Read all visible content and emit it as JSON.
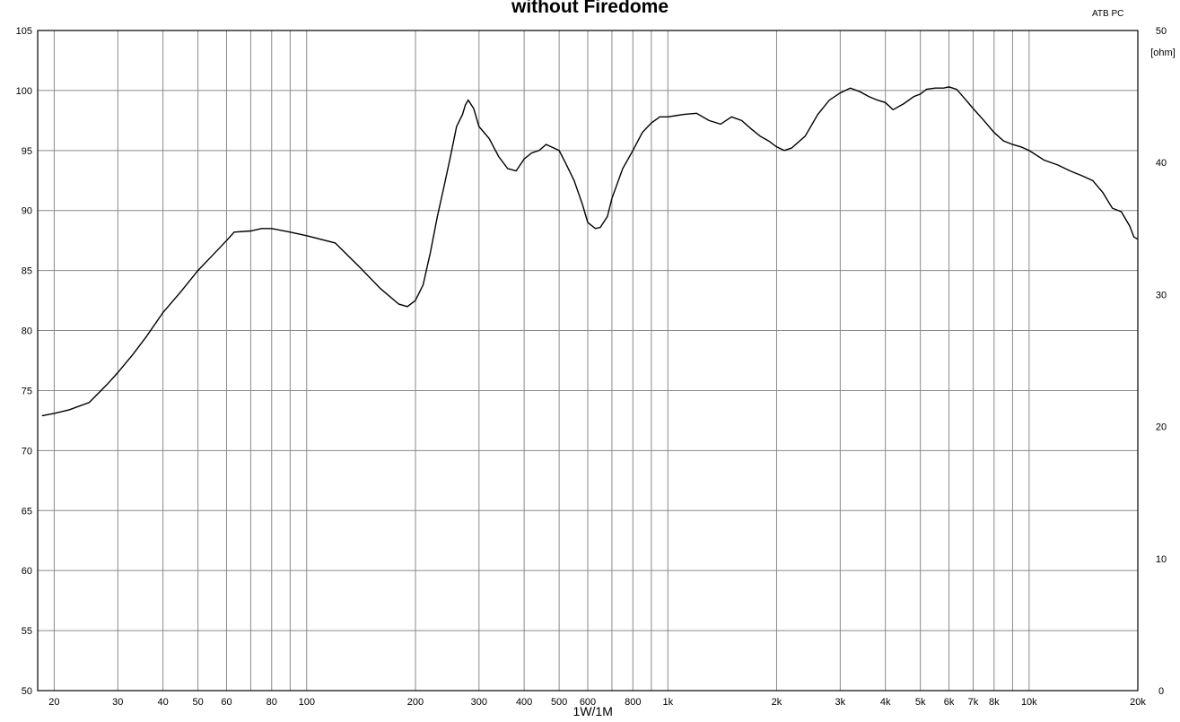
{
  "chart_data": {
    "type": "line",
    "title": "without Firedome",
    "corner_label": "ATB PC",
    "xlabel": "1W/1M",
    "x_scale": "log",
    "xlim": [
      18,
      20000
    ],
    "ylim": [
      50,
      105
    ],
    "y_ticks": [
      "105",
      "100",
      "95",
      "90",
      "85",
      "80",
      "75",
      "70",
      "65",
      "60",
      "55",
      "50"
    ],
    "y2_unit": "[ohm]",
    "y2lim": [
      0,
      50
    ],
    "y2_ticks": [
      "50",
      "40",
      "30",
      "20",
      "10",
      "0"
    ],
    "x_ticks": [
      {
        "v": 20,
        "label": "20"
      },
      {
        "v": 30,
        "label": "30"
      },
      {
        "v": 40,
        "label": "40"
      },
      {
        "v": 50,
        "label": "50"
      },
      {
        "v": 60,
        "label": "60"
      },
      {
        "v": 80,
        "label": "80"
      },
      {
        "v": 100,
        "label": "100"
      },
      {
        "v": 200,
        "label": "200"
      },
      {
        "v": 300,
        "label": "300"
      },
      {
        "v": 400,
        "label": "400"
      },
      {
        "v": 500,
        "label": "500"
      },
      {
        "v": 600,
        "label": "600"
      },
      {
        "v": 800,
        "label": "800"
      },
      {
        "v": 1000,
        "label": "1k"
      },
      {
        "v": 2000,
        "label": "2k"
      },
      {
        "v": 3000,
        "label": "3k"
      },
      {
        "v": 4000,
        "label": "4k"
      },
      {
        "v": 5000,
        "label": "5k"
      },
      {
        "v": 6000,
        "label": "6k"
      },
      {
        "v": 7000,
        "label": "7k"
      },
      {
        "v": 8000,
        "label": "8k"
      },
      {
        "v": 10000,
        "label": "10k"
      },
      {
        "v": 20000,
        "label": "20k"
      }
    ],
    "grid": true,
    "series": [
      {
        "x": [
          18.5,
          20,
          22,
          25,
          28,
          30,
          33,
          36,
          40,
          45,
          50,
          55,
          60,
          63,
          70,
          75,
          80,
          90,
          100,
          120,
          140,
          160,
          180,
          190,
          200,
          210,
          220,
          230,
          240,
          250,
          260,
          270,
          275,
          280,
          290,
          300,
          320,
          340,
          360,
          380,
          400,
          420,
          440,
          460,
          500,
          520,
          550,
          580,
          600,
          630,
          650,
          680,
          700,
          750,
          800,
          850,
          900,
          950,
          1000,
          1050,
          1100,
          1200,
          1300,
          1400,
          1500,
          1600,
          1700,
          1800,
          1900,
          2000,
          2100,
          2200,
          2400,
          2600,
          2800,
          3000,
          3200,
          3400,
          3600,
          3800,
          4000,
          4200,
          4500,
          4800,
          5000,
          5200,
          5500,
          5800,
          6000,
          6300,
          6600,
          7000,
          7500,
          8000,
          8500,
          9000,
          9500,
          10000,
          11000,
          12000,
          13000,
          14000,
          15000,
          16000,
          17000,
          18000,
          19000,
          19500,
          20000
        ],
        "y": [
          72.9,
          73.1,
          73.4,
          74.0,
          75.5,
          76.5,
          78.0,
          79.5,
          81.5,
          83.3,
          85.0,
          86.3,
          87.5,
          88.2,
          88.3,
          88.5,
          88.5,
          88.2,
          87.9,
          87.3,
          85.3,
          83.5,
          82.2,
          82.0,
          82.5,
          83.8,
          86.5,
          89.5,
          92.0,
          94.5,
          97.0,
          98.0,
          98.8,
          99.2,
          98.5,
          97.0,
          96.0,
          94.5,
          93.5,
          93.3,
          94.3,
          94.8,
          95.0,
          95.5,
          95.0,
          94.0,
          92.5,
          90.5,
          89.0,
          88.5,
          88.6,
          89.5,
          91.0,
          93.5,
          95.0,
          96.5,
          97.3,
          97.8,
          97.8,
          97.9,
          98.0,
          98.1,
          97.5,
          97.2,
          97.8,
          97.5,
          96.8,
          96.2,
          95.8,
          95.3,
          95.0,
          95.2,
          96.2,
          98.0,
          99.2,
          99.8,
          100.2,
          99.9,
          99.5,
          99.2,
          99.0,
          98.4,
          98.9,
          99.5,
          99.7,
          100.1,
          100.2,
          100.2,
          100.3,
          100.1,
          99.4,
          98.5,
          97.5,
          96.5,
          95.8,
          95.5,
          95.3,
          95.0,
          94.2,
          93.8,
          93.3,
          92.9,
          92.5,
          91.5,
          90.2,
          89.9,
          88.7,
          87.8,
          87.6
        ]
      }
    ]
  }
}
